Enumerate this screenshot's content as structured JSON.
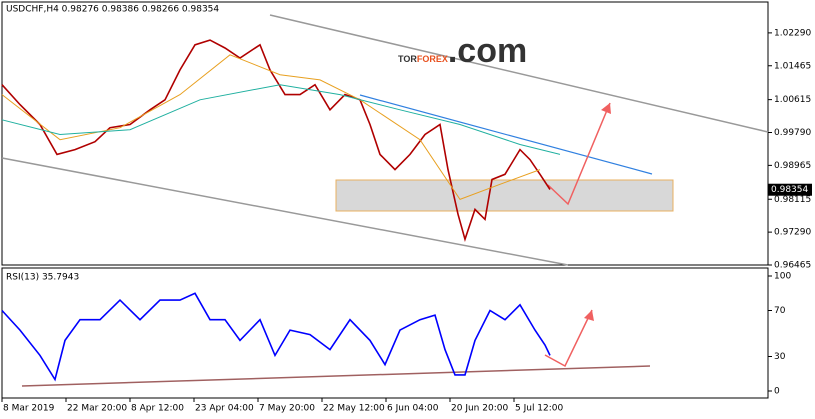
{
  "header": "USDCHF,H4  0.98276 0.98386 0.98266 0.98354",
  "logo": {
    "part1": "TOR",
    "part2": "FOREX",
    "part3": ".com"
  },
  "last_price": 0.98354,
  "chart_data": [
    {
      "type": "line",
      "xlim": [
        0,
        383
      ],
      "xticks": [
        {
          "value": 0,
          "label": "8 Mar 2019"
        },
        {
          "value": 32,
          "label": "22 Mar 20:00"
        },
        {
          "value": 64,
          "label": "8 Apr 12:00"
        },
        {
          "value": 96,
          "label": "23 Apr 04:00"
        },
        {
          "value": 128,
          "label": "7 May 20:00"
        },
        {
          "value": 160,
          "label": "22 May 12:00"
        },
        {
          "value": 192,
          "label": "6 Jun 04:00"
        },
        {
          "value": 224,
          "label": "20 Jun 20:00"
        },
        {
          "value": 256,
          "label": "5 Jul 12:00"
        }
      ],
      "ylim": [
        0.96465,
        1.03065
      ],
      "yticks": [
        {
          "value": 1.0229,
          "label": "1.02290"
        },
        1.01465,
        1.00615,
        {
          "value": 0.9979,
          "label": "0.99790"
        },
        0.98965,
        0.98115,
        {
          "value": 0.9729,
          "label": "0.97290"
        },
        0.96465
      ],
      "series": [
        {
          "color": "#b00000",
          "x": [
            0,
            9,
            19,
            27.5,
            36.5,
            46.5,
            54,
            64,
            74,
            81.5,
            89,
            96.5,
            104,
            111.5,
            119,
            129,
            134,
            141.5,
            149,
            156.5,
            164,
            171.5,
            179,
            184,
            189,
            196.5,
            204,
            211.5,
            219,
            223,
            228,
            231.5,
            236.5,
            241.5,
            245,
            251.5,
            259,
            264,
            269,
            274
          ],
          "values": [
            1.0099,
            1.0049,
            0.9999,
            0.9924,
            0.9936,
            0.9956,
            0.9991,
            0.9999,
            1.0036,
            1.0061,
            1.0136,
            1.0199,
            1.0211,
            1.0191,
            1.0166,
            1.0199,
            1.0136,
            1.0074,
            1.0074,
            1.0099,
            1.0036,
            1.0074,
            1.0061,
            0.9999,
            0.9924,
            0.9886,
            0.9924,
            0.9974,
            0.9999,
            0.9886,
            0.9774,
            0.9711,
            0.9786,
            0.9761,
            0.9861,
            0.9874,
            0.9936,
            0.9911,
            0.9874,
            0.9836
          ]
        },
        {
          "color": "#e8a020",
          "x": [
            0,
            29,
            59,
            89,
            114,
            139,
            159,
            179,
            209,
            229,
            249,
            269
          ],
          "values": [
            1.0074,
            0.9961,
            0.9991,
            1.0074,
            1.0174,
            1.0124,
            1.0111,
            1.0061,
            0.9961,
            0.9811,
            0.9849,
            0.9886
          ]
        },
        {
          "color": "#20b0a0",
          "x": [
            0,
            29,
            64,
            99,
            139,
            169,
            199,
            229,
            259,
            279
          ],
          "values": [
            1.0011,
            0.9974,
            0.9986,
            1.0061,
            1.0099,
            1.0074,
            1.0036,
            0.9999,
            0.9949,
            0.9924
          ]
        }
      ]
    },
    {
      "type": "line",
      "title": "RSI(13) 35.7943",
      "xlim": [
        0,
        383
      ],
      "ylim": [
        0,
        100
      ],
      "yticks": [
        0,
        30,
        70,
        100
      ],
      "series": [
        {
          "color": "#0000ff",
          "x": [
            0,
            9,
            19,
            26.5,
            31.5,
            39,
            49,
            59,
            69,
            79,
            89,
            96.5,
            104,
            111.5,
            119,
            129,
            136.5,
            144,
            154,
            164,
            174,
            184,
            191.5,
            199,
            209,
            216.5,
            221.5,
            226.5,
            231.5,
            236.5,
            244,
            251.5,
            259,
            266.5,
            271.5,
            274
          ],
          "values": [
            70,
            53,
            31,
            10,
            44,
            62,
            62,
            79,
            62,
            79,
            79,
            85,
            62,
            62,
            44,
            62,
            31,
            53,
            49,
            36,
            62,
            44,
            23,
            53,
            62,
            66,
            36,
            14,
            14,
            44,
            70,
            62,
            75,
            53,
            40,
            31
          ]
        }
      ]
    }
  ]
}
